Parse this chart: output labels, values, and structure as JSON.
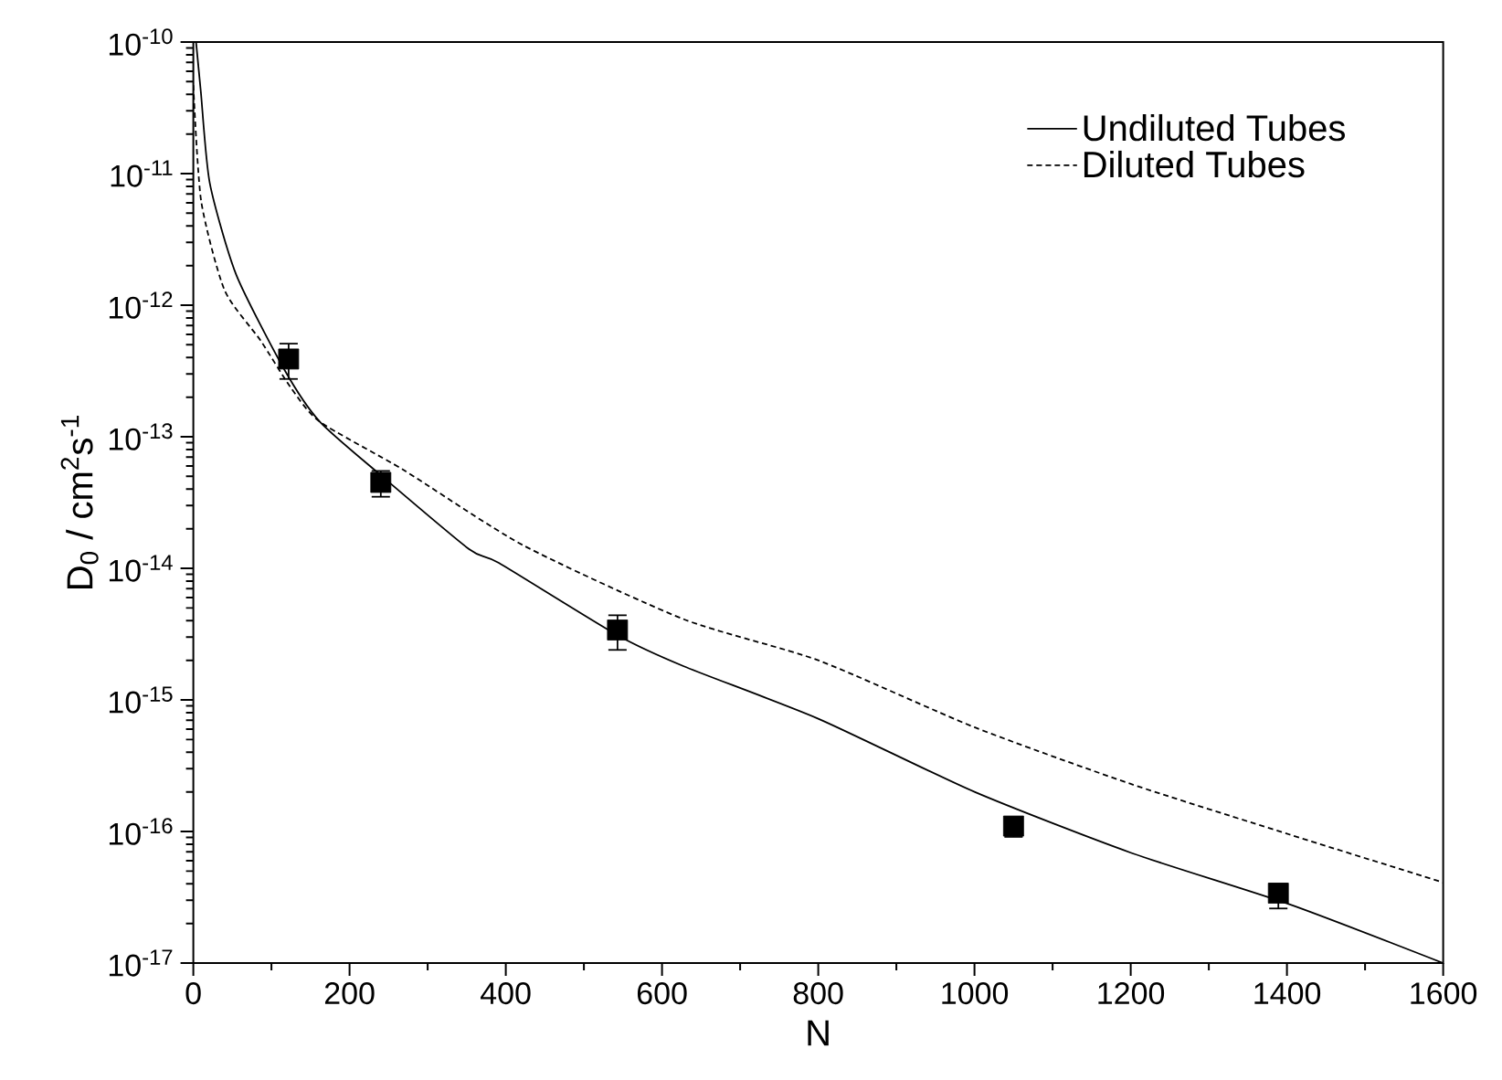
{
  "chart_data": {
    "type": "line",
    "xlabel": "N",
    "ylabel": "D$_{0}$ / cm$^{2}$s$^{-1}$",
    "log": "y",
    "legend": "top right",
    "xlim": [
      0,
      1600
    ],
    "xticks": [
      0,
      200,
      400,
      600,
      800,
      1000,
      1200,
      1400,
      1600
    ],
    "ylim": [
      1e-17,
      1e-10
    ],
    "yticks": [
      {
        "value": 1e-17,
        "label": "10$^{-17}$"
      },
      {
        "value": 1e-16,
        "label": "10$^{-16}$"
      },
      {
        "value": 1e-15,
        "label": "10$^{-15}$"
      },
      {
        "value": 1e-14,
        "label": "10$^{-14}$"
      },
      {
        "value": 1e-13,
        "label": "10$^{-13}$"
      },
      {
        "value": 1e-12,
        "label": "10$^{-12}$"
      },
      {
        "value": 1e-11,
        "label": "10$^{-11}$"
      },
      {
        "value": 1e-10,
        "label": "10$^{-10}$"
      }
    ],
    "series": [
      {
        "name": "Undiluted Tubes",
        "line_style": "solid",
        "marker": "none",
        "color": "#000000",
        "x": [
          3.5,
          9.6,
          21,
          55,
          117,
          162,
          240,
          353,
          391,
          543,
          628,
          800,
          1000,
          1200,
          1403,
          1600
        ],
        "values": [
          1e-10,
          4.2e-11,
          8.5e-12,
          1.7e-12,
          3.2e-13,
          1.3e-13,
          5.1e-14,
          1.4e-14,
          1.1e-14,
          3.1e-15,
          1.8e-15,
          7.2e-16,
          2e-16,
          6.9e-17,
          2.8e-17,
          1e-17
        ]
      },
      {
        "name": "Diluted Tubes",
        "line_style": "dashed",
        "marker": "none",
        "color": "#000000",
        "x": [
          0,
          10,
          40,
          86,
          124,
          162,
          269,
          422,
          628,
          800,
          1000,
          1200,
          1403,
          1600
        ],
        "values": [
          4.7e-11,
          6.2e-12,
          1.3e-12,
          5.4e-13,
          2.4e-13,
          1.3e-13,
          5.6e-14,
          1.5e-14,
          4.1e-15,
          2e-15,
          6.2e-16,
          2.3e-16,
          9.5e-17,
          4.1e-17
        ]
      },
      {
        "type": "scatter",
        "marker": "square",
        "color": "#000000",
        "x": [
          122,
          240,
          543,
          1050,
          1389
        ],
        "values": [
          3.9e-13,
          4.5e-14,
          3.4e-15,
          1.1e-16,
          3.4e-17
        ],
        "errors": [
          [
            2.75e-13,
            5.1e-13
          ],
          [
            3.5e-14,
            5.5e-14
          ],
          [
            2.4e-15,
            4.4e-15
          ],
          [
            9.1e-17,
            1.2e-16
          ],
          [
            2.6e-17,
            4e-17
          ]
        ]
      }
    ]
  }
}
